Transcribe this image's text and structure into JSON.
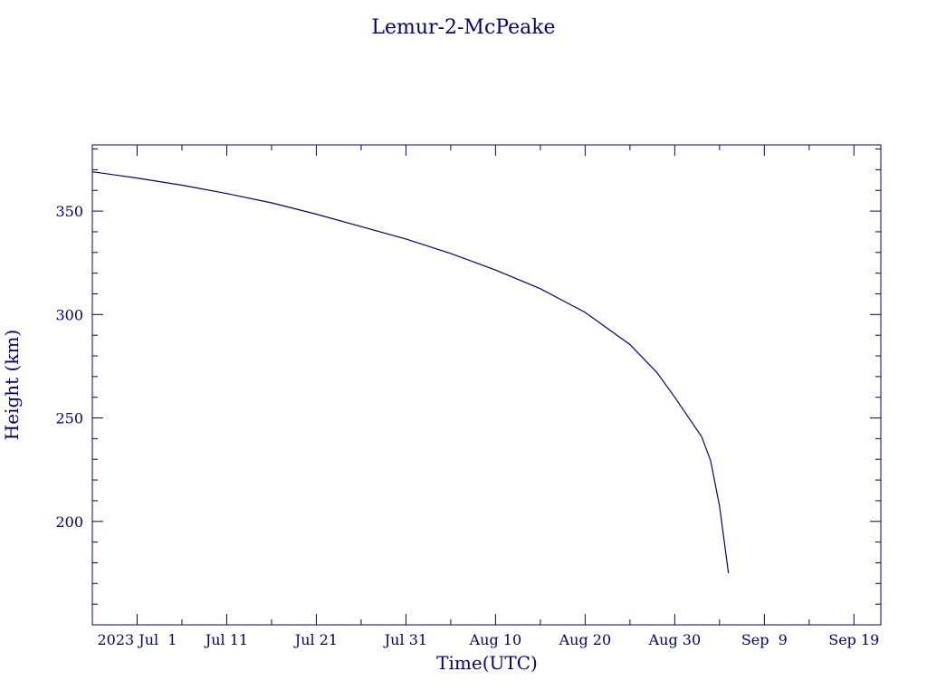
{
  "colors": {
    "ink": "#000080",
    "background": "#ffffff"
  },
  "chart_data": {
    "type": "line",
    "title": "Lemur-2-McPeake",
    "xlabel": "Time(UTC)",
    "ylabel": "Height (km)",
    "x_tick_labels": [
      "2023 Jul  1",
      "Jul 11",
      "Jul 21",
      "Jul 31",
      "Aug 10",
      "Aug 20",
      "Aug 30",
      "Sep  9",
      "Sep 19"
    ],
    "x_ticks": [
      "2023-07-01",
      "2023-07-11",
      "2023-07-21",
      "2023-07-31",
      "2023-08-10",
      "2023-08-20",
      "2023-08-30",
      "2023-09-09",
      "2023-09-19"
    ],
    "y_ticks": [
      200,
      250,
      300,
      350
    ],
    "xlim": [
      "2023-06-26",
      "2023-09-22"
    ],
    "ylim": [
      150,
      382
    ],
    "grid": false,
    "series": [
      {
        "values": [
          [
            "2023-06-26",
            369.0
          ],
          [
            "2023-07-01",
            366.0
          ],
          [
            "2023-07-06",
            362.5
          ],
          [
            "2023-07-11",
            358.5
          ],
          [
            "2023-07-16",
            354.0
          ],
          [
            "2023-07-21",
            348.5
          ],
          [
            "2023-07-26",
            342.5
          ],
          [
            "2023-07-31",
            336.5
          ],
          [
            "2023-08-05",
            329.5
          ],
          [
            "2023-08-10",
            321.5
          ],
          [
            "2023-08-15",
            312.5
          ],
          [
            "2023-08-20",
            301.0
          ],
          [
            "2023-08-25",
            285.5
          ],
          [
            "2023-08-28",
            272.0
          ],
          [
            "2023-08-30",
            260.0
          ],
          [
            "2023-09-02",
            241.0
          ],
          [
            "2023-09-03",
            229.5
          ],
          [
            "2023-09-04",
            207.5
          ],
          [
            "2023-09-05",
            175.0
          ]
        ]
      }
    ]
  }
}
